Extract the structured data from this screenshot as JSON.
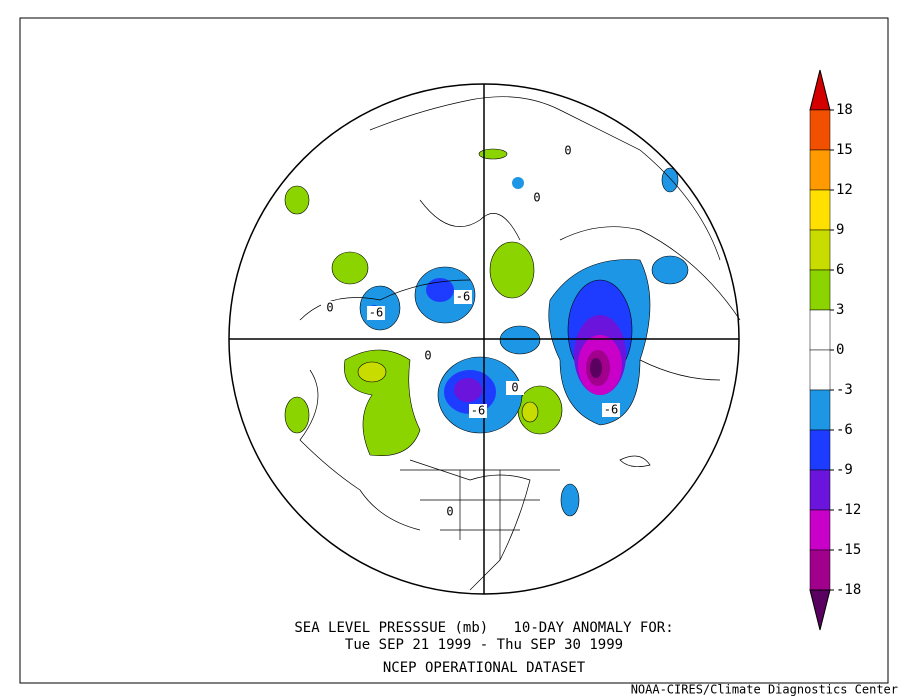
{
  "map": {
    "caption": [
      "SEA LEVEL PRESSSUE (mb)   10-DAY ANOMALY FOR:",
      "Tue SEP 21 1999 - Thu SEP 30 1999",
      "NCEP OPERATIONAL DATASET"
    ],
    "credit": "NOAA-CIRES/Climate Diagnostics Center",
    "contour_labels": [
      "-6",
      "-6",
      "-6",
      "-6",
      "0",
      "0",
      "0",
      "0",
      "0",
      "0"
    ],
    "colorbar": {
      "ticks": [
        18,
        15,
        12,
        9,
        6,
        3,
        0,
        -3,
        -6,
        -9,
        -12,
        -15,
        -18
      ],
      "colors": [
        "#d40000",
        "#f05000",
        "#ff9a00",
        "#ffe000",
        "#c8dc00",
        "#8cd400",
        "#ffffff",
        "#ffffff",
        "#1e96e6",
        "#1e3cff",
        "#6a14dc",
        "#c800c8",
        "#a0008c",
        "#5a0060"
      ]
    }
  }
}
